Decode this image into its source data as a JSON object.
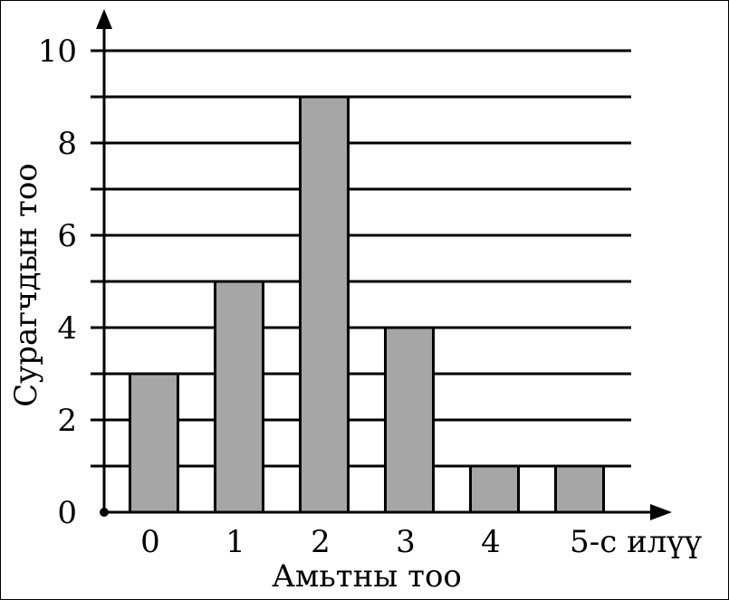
{
  "chart_data": {
    "type": "bar",
    "categories": [
      "0",
      "1",
      "2",
      "3",
      "4",
      "5-с илүү"
    ],
    "values": [
      3,
      5,
      9,
      4,
      1,
      1
    ],
    "xlabel": "Амьтны тоо",
    "ylabel": "Сурагчдын тоо",
    "ylim": [
      0,
      10
    ],
    "yticks": [
      "0",
      "2",
      "4",
      "6",
      "8",
      "10"
    ],
    "grid": true,
    "grid_step": 1,
    "bar_color": "#a6a6a6",
    "edge_color": "#000000"
  }
}
